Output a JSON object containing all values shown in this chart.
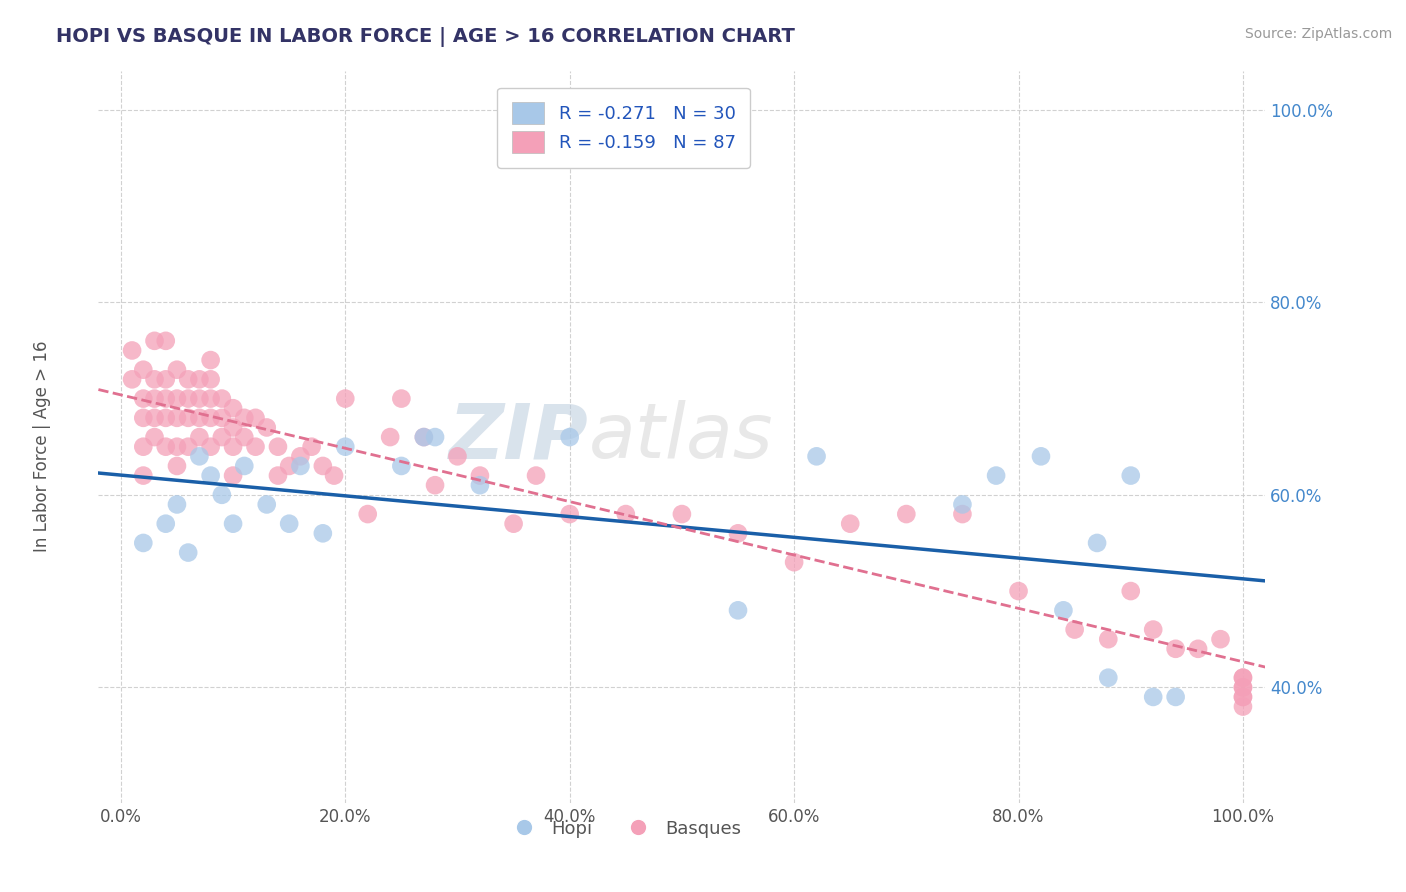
{
  "title": "HOPI VS BASQUE IN LABOR FORCE | AGE > 16 CORRELATION CHART",
  "source_text": "Source: ZipAtlas.com",
  "ylabel": "In Labor Force | Age > 16",
  "xlim": [
    -0.02,
    1.02
  ],
  "ylim": [
    0.28,
    1.04
  ],
  "hopi_R": -0.271,
  "hopi_N": 30,
  "basque_R": -0.159,
  "basque_N": 87,
  "hopi_color": "#a8c8e8",
  "basque_color": "#f4a0b8",
  "hopi_line_color": "#1a5fa8",
  "basque_line_color": "#e07090",
  "watermark_zip": "ZIP",
  "watermark_atlas": "atlas",
  "hopi_x": [
    0.02,
    0.04,
    0.05,
    0.06,
    0.07,
    0.08,
    0.09,
    0.1,
    0.11,
    0.13,
    0.15,
    0.16,
    0.18,
    0.2,
    0.25,
    0.28,
    0.32,
    0.27,
    0.4,
    0.55,
    0.62,
    0.75,
    0.78,
    0.82,
    0.84,
    0.87,
    0.88,
    0.9,
    0.92,
    0.94
  ],
  "hopi_y": [
    0.55,
    0.57,
    0.59,
    0.54,
    0.64,
    0.62,
    0.6,
    0.57,
    0.63,
    0.59,
    0.57,
    0.63,
    0.56,
    0.65,
    0.63,
    0.66,
    0.61,
    0.66,
    0.66,
    0.48,
    0.64,
    0.59,
    0.62,
    0.64,
    0.48,
    0.55,
    0.41,
    0.62,
    0.39,
    0.39
  ],
  "basque_x": [
    0.01,
    0.01,
    0.02,
    0.02,
    0.02,
    0.02,
    0.02,
    0.03,
    0.03,
    0.03,
    0.03,
    0.03,
    0.04,
    0.04,
    0.04,
    0.04,
    0.04,
    0.05,
    0.05,
    0.05,
    0.05,
    0.05,
    0.06,
    0.06,
    0.06,
    0.06,
    0.07,
    0.07,
    0.07,
    0.07,
    0.08,
    0.08,
    0.08,
    0.08,
    0.08,
    0.09,
    0.09,
    0.09,
    0.1,
    0.1,
    0.1,
    0.1,
    0.11,
    0.11,
    0.12,
    0.12,
    0.13,
    0.14,
    0.14,
    0.15,
    0.16,
    0.17,
    0.18,
    0.19,
    0.2,
    0.22,
    0.24,
    0.25,
    0.27,
    0.28,
    0.3,
    0.32,
    0.35,
    0.37,
    0.4,
    0.45,
    0.5,
    0.55,
    0.6,
    0.65,
    0.7,
    0.75,
    0.8,
    0.85,
    0.88,
    0.9,
    0.92,
    0.94,
    0.96,
    0.98,
    1.0,
    1.0,
    1.0,
    1.0,
    1.0,
    1.0,
    1.0
  ],
  "basque_y": [
    0.72,
    0.75,
    0.73,
    0.68,
    0.65,
    0.62,
    0.7,
    0.7,
    0.68,
    0.66,
    0.72,
    0.76,
    0.68,
    0.72,
    0.76,
    0.7,
    0.65,
    0.65,
    0.63,
    0.7,
    0.68,
    0.73,
    0.65,
    0.68,
    0.7,
    0.72,
    0.7,
    0.68,
    0.66,
    0.72,
    0.7,
    0.68,
    0.65,
    0.72,
    0.74,
    0.68,
    0.66,
    0.7,
    0.67,
    0.69,
    0.65,
    0.62,
    0.68,
    0.66,
    0.65,
    0.68,
    0.67,
    0.65,
    0.62,
    0.63,
    0.64,
    0.65,
    0.63,
    0.62,
    0.7,
    0.58,
    0.66,
    0.7,
    0.66,
    0.61,
    0.64,
    0.62,
    0.57,
    0.62,
    0.58,
    0.58,
    0.58,
    0.56,
    0.53,
    0.57,
    0.58,
    0.58,
    0.5,
    0.46,
    0.45,
    0.5,
    0.46,
    0.44,
    0.44,
    0.45,
    0.4,
    0.41,
    0.39,
    0.4,
    0.39,
    0.41,
    0.38
  ],
  "x_ticks": [
    0.0,
    0.2,
    0.4,
    0.6,
    0.8,
    1.0
  ],
  "y_ticks": [
    0.4,
    0.6,
    0.8,
    1.0
  ],
  "title_color": "#333366",
  "ytick_color": "#4488cc",
  "xtick_color": "#555555",
  "grid_color": "#cccccc",
  "source_color": "#999999",
  "legend_text_color": "#2255bb"
}
